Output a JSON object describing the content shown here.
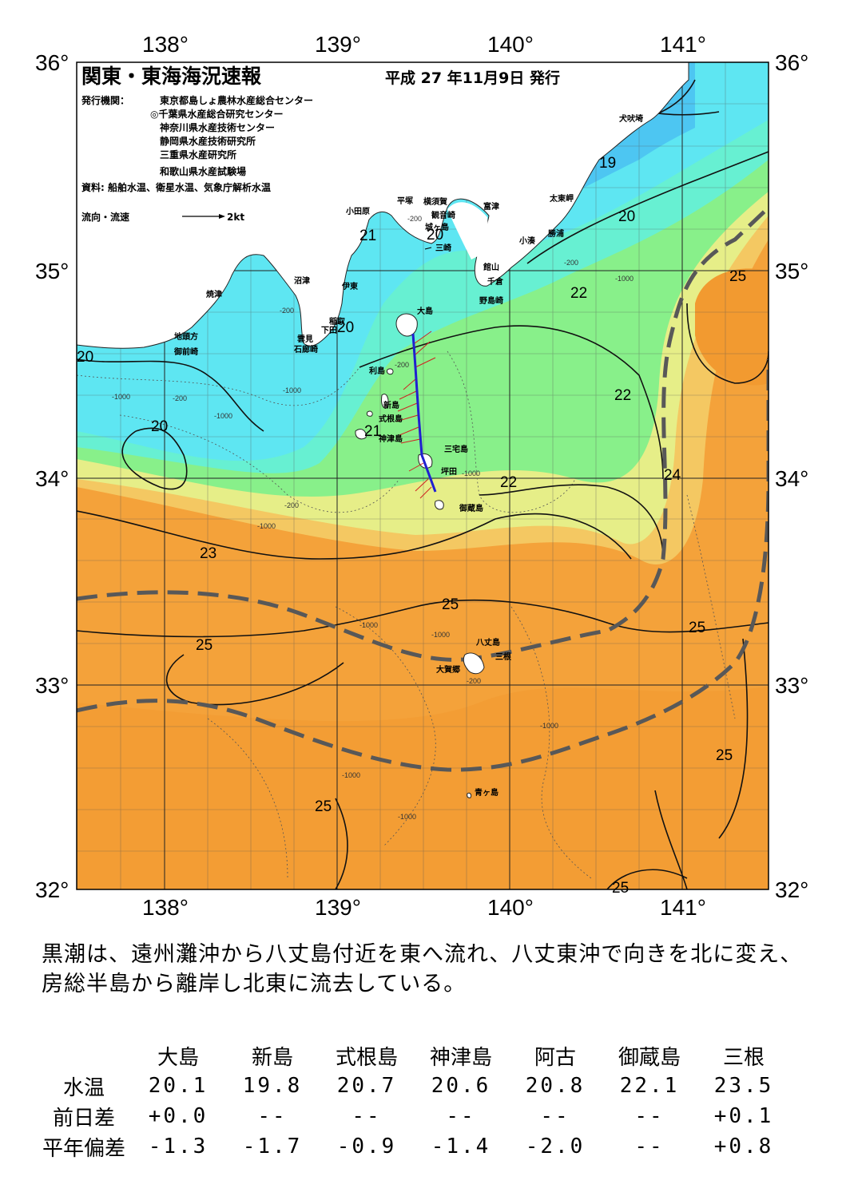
{
  "header": {
    "title": "関東・東海海況速報",
    "date": "平成 27 年11月9日 発行",
    "issuer_label": "発行機関：",
    "issuers": [
      "東京都島しょ農林水産総合センター",
      "◎千葉県水産総合研究センター",
      "神奈川県水産技術センター",
      "静岡県水産技術研究所",
      "三重県水産研究所",
      "和歌山県水産試験場"
    ],
    "source": "資料: 船舶水温、衛星水温、気象庁解析水温",
    "legend_label": "流向・流速",
    "legend_value": "2kt"
  },
  "axes": {
    "lon_labels": [
      "138°",
      "139°",
      "140°",
      "141°"
    ],
    "lat_labels": [
      "36°",
      "35°",
      "34°",
      "33°",
      "32°"
    ],
    "lon_range": [
      137.5,
      141.5
    ],
    "lat_range": [
      32.0,
      36.0
    ]
  },
  "places": {
    "inubosaki": "犬吠埼",
    "taitomisaki": "太東岬",
    "katsuura": "勝浦",
    "kominato": "小湊",
    "tomitsu": "富津",
    "tateyama": "館山",
    "chikura": "千倉",
    "nojimazaki": "野島崎",
    "yokosuka": "横須賀",
    "kannonzaki": "観音崎",
    "hiratsuka": "平塚",
    "jogashima": "城ヶ島",
    "misaki": "三崎",
    "odawara": "小田原",
    "numazu": "沼津",
    "ito": "伊東",
    "inatori": "稲取",
    "shimoda": "下田",
    "kumomi": "雲見",
    "irozaki": "石廊崎",
    "yaizu": "焼津",
    "chitoshi": "地頭方",
    "omaezaki": "御前崎",
    "oshima": "大島",
    "toshima": "利島",
    "niijima": "新島",
    "shikinejima": "式根島",
    "kozushima": "神津島",
    "miyakejima": "三宅島",
    "tsubota": "坪田",
    "mikurajima": "御蔵島",
    "hachijojima": "八丈島",
    "mitsune": "三根",
    "okago": "大賀郷",
    "aogashima": "青ヶ島"
  },
  "isotherms": {
    "19": "19",
    "20": "20",
    "21": "21",
    "22": "22",
    "23": "23",
    "24": "24",
    "25": "25"
  },
  "depth_labels": {
    "d200": "-200",
    "d1000": "-1000"
  },
  "colors": {
    "land": "#ffffff",
    "t19": "#4dc6f2",
    "t20": "#5ee6f2",
    "t21": "#67f0d2",
    "t22": "#88f08a",
    "t23": "#e6ee88",
    "t24": "#f4c862",
    "t25": "#f4a23a",
    "t25b": "#f29a30",
    "kuroshio": "#585858",
    "track": "#2020d0",
    "vectors": "#d02020"
  },
  "summary": "黒潮は、遠州灘沖から八丈島付近を東へ流れ、八丈東沖で向きを北に変え、房総半島から離岸し北東に流去している。",
  "table": {
    "columns": [
      "大島",
      "新島",
      "式根島",
      "神津島",
      "阿古",
      "御蔵島",
      "三根"
    ],
    "rows": [
      {
        "label": "水温",
        "values": [
          "20.1",
          "19.8",
          "20.7",
          "20.6",
          "20.8",
          "22.1",
          "23.5"
        ]
      },
      {
        "label": "前日差",
        "values": [
          "+0.0",
          "--",
          "--",
          "--",
          "--",
          "--",
          "+0.1"
        ]
      },
      {
        "label": "平年偏差",
        "values": [
          "-1.3",
          "-1.7",
          "-0.9",
          "-1.4",
          "-2.0",
          "--",
          "+0.8"
        ]
      }
    ]
  }
}
